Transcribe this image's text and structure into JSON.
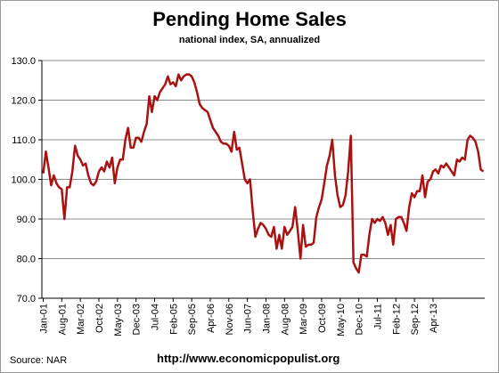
{
  "chart_data": {
    "type": "line",
    "title": "Pending Home Sales",
    "subtitle": "national index, SA, annualized",
    "xlabel": "",
    "ylabel": "",
    "ylim": [
      70,
      130
    ],
    "yticks": [
      "70.0",
      "80.0",
      "90.0",
      "100.0",
      "110.0",
      "120.0",
      "130.0"
    ],
    "grid": true,
    "legend": "none",
    "x_tick_labels": [
      "Jan-01",
      "Aug-01",
      "Mar-02",
      "Oct-02",
      "May-03",
      "Dec-03",
      "Jul-04",
      "Feb-05",
      "Sep-05",
      "Apr-06",
      "Nov-06",
      "Jun-07",
      "Jan-08",
      "Aug-08",
      "Mar-09",
      "Oct-09",
      "May-10",
      "Dec-10",
      "Jul-11",
      "Feb-12",
      "Sep-12",
      "Apr-13"
    ],
    "series": [
      {
        "color": "#aa1111",
        "start": "Jan-01",
        "frequency": "monthly",
        "values": [
          101.5,
          107,
          103,
          98.5,
          101,
          99,
          98,
          97.5,
          90,
          98,
          98,
          102,
          108.5,
          106,
          105,
          103.5,
          104,
          101,
          99,
          98.5,
          99.5,
          102,
          103,
          102,
          104.5,
          103,
          105.5,
          99,
          103,
          105,
          105,
          110,
          113,
          108,
          108,
          110.5,
          110.5,
          109.5,
          112,
          114,
          121,
          117,
          121,
          120,
          122,
          123,
          124,
          126,
          124,
          124.5,
          123.5,
          126.5,
          125,
          126,
          126.5,
          126.5,
          126,
          124.5,
          122,
          119,
          118,
          117.5,
          117,
          115,
          113,
          112,
          111,
          109.5,
          109,
          109,
          108.5,
          107,
          112,
          107.5,
          108,
          104,
          100,
          99,
          100,
          92,
          85.5,
          87.5,
          89,
          88.5,
          87.5,
          86,
          85.5,
          88,
          82.5,
          86,
          82.5,
          88,
          86,
          87,
          88,
          93,
          87,
          80,
          88.5,
          83,
          83.5,
          83.5,
          84,
          90.5,
          93,
          95,
          99,
          103.5,
          106,
          110,
          101,
          96,
          93,
          93.5,
          96,
          102,
          111,
          79,
          77.5,
          76.5,
          81,
          81,
          80.5,
          86,
          90,
          89,
          90,
          89.5,
          90.5,
          89,
          86,
          88.5,
          83.5,
          90,
          90.5,
          90.5,
          89,
          87,
          93,
          96.5,
          95.5,
          97,
          97,
          101,
          95.5,
          99.5,
          100,
          102,
          102.5,
          101.5,
          103.5,
          103,
          104,
          103,
          102,
          101,
          105,
          104.5,
          105.5,
          105,
          110,
          111,
          110.5,
          109.5,
          107,
          102.5,
          102
        ]
      }
    ]
  },
  "source": "Source:  NAR",
  "credit": "http://www.economicpopulist.org"
}
